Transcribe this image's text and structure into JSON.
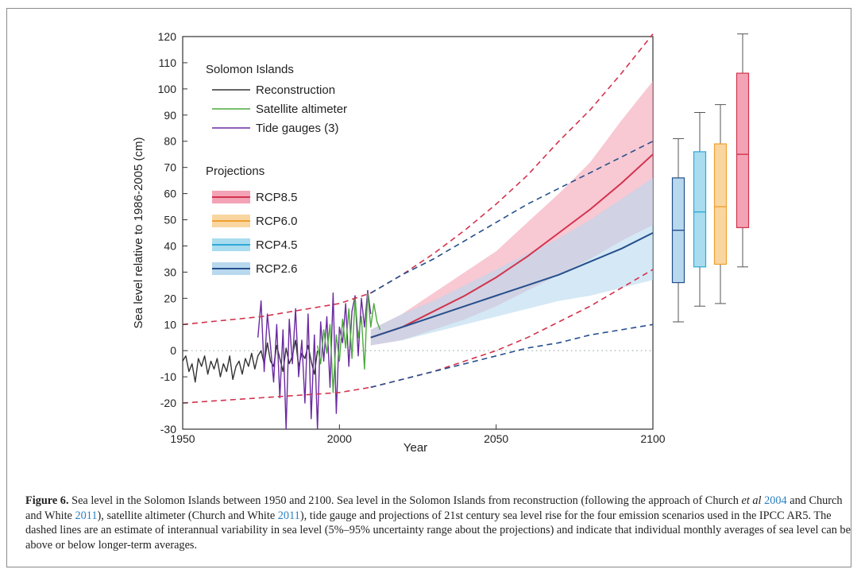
{
  "figure": {
    "caption_label": "Figure 6.",
    "caption_parts": [
      {
        "text": " Sea level in the Solomon Islands between 1950 and 2100. Sea level in the Solomon Islands from reconstruction (following the approach of Church ",
        "style": "plain"
      },
      {
        "text": "et al",
        "style": "italic"
      },
      {
        "text": " ",
        "style": "plain"
      },
      {
        "text": "2004",
        "style": "ref"
      },
      {
        "text": " and Church and White ",
        "style": "plain"
      },
      {
        "text": "2011",
        "style": "ref"
      },
      {
        "text": "), satellite altimeter (Church and White ",
        "style": "plain"
      },
      {
        "text": "2011",
        "style": "ref"
      },
      {
        "text": "), tide gauge and projections of 21st century sea level rise for the four emission scenarios used in the IPCC AR5. The dashed lines are an estimate of interannual variability in sea level (5%–95% uncertainty range about the projections) and indicate that individual monthly averages of sea level can be above or below longer-term averages.",
        "style": "plain"
      }
    ]
  },
  "chart_data": {
    "type": "line",
    "xlabel": "Year",
    "ylabel": "Sea level relative to 1986-2005 (cm)",
    "xlim": [
      1950,
      2100
    ],
    "ylim": [
      -30,
      120
    ],
    "x_ticks": [
      1950,
      2000,
      2050,
      2100
    ],
    "y_ticks": [
      -30,
      -20,
      -10,
      0,
      10,
      20,
      30,
      40,
      50,
      60,
      70,
      80,
      90,
      100,
      110,
      120
    ],
    "legend": {
      "placement": "top-left",
      "title": "Solomon Islands",
      "observations": [
        {
          "name": "Reconstruction",
          "color": "#333333"
        },
        {
          "name": "Satellite altimeter",
          "color": "#4caa3c"
        },
        {
          "name": "Tide gauges (3)",
          "color": "#6a2aa0"
        }
      ],
      "projections_title": "Projections",
      "projections": [
        {
          "name": "RCP8.5",
          "color": "#d2334d",
          "band": "#f3a3b5"
        },
        {
          "name": "RCP6.0",
          "color": "#f0a030",
          "band": "#f9d6a0"
        },
        {
          "name": "RCP4.5",
          "color": "#30a8d8",
          "band": "#a9dcef"
        },
        {
          "name": "RCP2.6",
          "color": "#254f8c",
          "band": "#b8d8ee"
        }
      ]
    },
    "series": [
      {
        "name": "Reconstruction",
        "x": [
          1950,
          1951,
          1952,
          1953,
          1954,
          1955,
          1956,
          1957,
          1958,
          1959,
          1960,
          1961,
          1962,
          1963,
          1964,
          1965,
          1966,
          1967,
          1968,
          1969,
          1970,
          1971,
          1972,
          1973,
          1974,
          1975,
          1976,
          1977,
          1978,
          1979,
          1980,
          1981,
          1982,
          1983,
          1984,
          1985,
          1986,
          1987,
          1988,
          1989,
          1990,
          1991,
          1992,
          1993
        ],
        "y": [
          -4,
          -2,
          -8,
          -5,
          -12,
          -3,
          -6,
          -2,
          -9,
          -4,
          -7,
          -3,
          -10,
          -5,
          -8,
          -2,
          -11,
          -6,
          -4,
          -9,
          -3,
          -6,
          -1,
          -7,
          -2,
          0,
          -5,
          3,
          -4,
          -6,
          2,
          -3,
          -8,
          1,
          -5,
          -2,
          4,
          -6,
          -1,
          -3,
          2,
          -4,
          -9,
          0
        ]
      },
      {
        "name": "Tide gauges (3)",
        "x": [
          1974,
          1975,
          1976,
          1977,
          1978,
          1979,
          1980,
          1981,
          1982,
          1983,
          1984,
          1985,
          1986,
          1987,
          1988,
          1989,
          1990,
          1991,
          1992,
          1993,
          1994,
          1995,
          1996,
          1997,
          1998,
          1999,
          2000,
          2001,
          2002,
          2003,
          2004,
          2005,
          2006,
          2007,
          2008,
          2009,
          2010
        ],
        "y": [
          5,
          19,
          -8,
          14,
          2,
          -12,
          10,
          -18,
          8,
          -30,
          12,
          -5,
          16,
          -10,
          4,
          -20,
          14,
          -26,
          6,
          -30,
          11,
          -4,
          13,
          -14,
          22,
          -24,
          9,
          3,
          18,
          -6,
          15,
          21,
          -2,
          20,
          9,
          23,
          14
        ]
      },
      {
        "name": "Satellite altimeter",
        "x": [
          1993,
          1994,
          1995,
          1996,
          1997,
          1998,
          1999,
          2000,
          2001,
          2002,
          2003,
          2004,
          2005,
          2006,
          2007,
          2008,
          2009,
          2010,
          2011,
          2012,
          2013
        ],
        "y": [
          2,
          -5,
          8,
          -1,
          10,
          -16,
          6,
          -4,
          12,
          1,
          16,
          -3,
          20,
          5,
          13,
          -7,
          22,
          9,
          18,
          11,
          8
        ]
      }
    ],
    "projections": [
      {
        "name": "RCP8.5",
        "x": [
          2010,
          2020,
          2030,
          2040,
          2050,
          2060,
          2070,
          2080,
          2090,
          2100
        ],
        "median": [
          5,
          9,
          15,
          21,
          28,
          36,
          45,
          54,
          64,
          75
        ],
        "lower": [
          2,
          4,
          8,
          12,
          17,
          23,
          29,
          35,
          42,
          48
        ],
        "upper": [
          8,
          14,
          22,
          30,
          38,
          49,
          60,
          72,
          88,
          103
        ],
        "dash_lower": [
          -14,
          -11,
          -8,
          -4,
          0,
          5,
          11,
          17,
          24,
          31
        ],
        "dash_upper": [
          22,
          29,
          37,
          46,
          56,
          67,
          80,
          92,
          106,
          121
        ]
      },
      {
        "name": "RCP2.6",
        "x": [
          2010,
          2020,
          2030,
          2040,
          2050,
          2060,
          2070,
          2080,
          2090,
          2100
        ],
        "median": [
          5,
          9,
          13,
          17,
          21,
          25,
          29,
          34,
          39,
          45
        ],
        "lower": [
          2,
          4,
          7,
          10,
          13,
          16,
          19,
          21,
          24,
          27
        ],
        "upper": [
          8,
          14,
          19,
          25,
          31,
          37,
          43,
          50,
          58,
          66
        ],
        "dash_lower": [
          -14,
          -11,
          -8,
          -5,
          -2,
          1,
          3,
          6,
          8,
          10
        ],
        "dash_upper": [
          22,
          29,
          35,
          42,
          49,
          56,
          62,
          68,
          74,
          80
        ]
      }
    ],
    "boxplots": [
      {
        "name": "RCP2.6",
        "min": 11,
        "q1": 26,
        "median": 46,
        "q3": 66,
        "max": 81
      },
      {
        "name": "RCP4.5",
        "min": 17,
        "q1": 32,
        "median": 53,
        "q3": 76,
        "max": 91
      },
      {
        "name": "RCP6.0",
        "min": 18,
        "q1": 33,
        "median": 55,
        "q3": 79,
        "max": 94
      },
      {
        "name": "RCP8.5",
        "min": 32,
        "q1": 47,
        "median": 75,
        "q3": 106,
        "max": 121
      }
    ],
    "reference_line": {
      "y": 0,
      "style": "dotted"
    }
  }
}
